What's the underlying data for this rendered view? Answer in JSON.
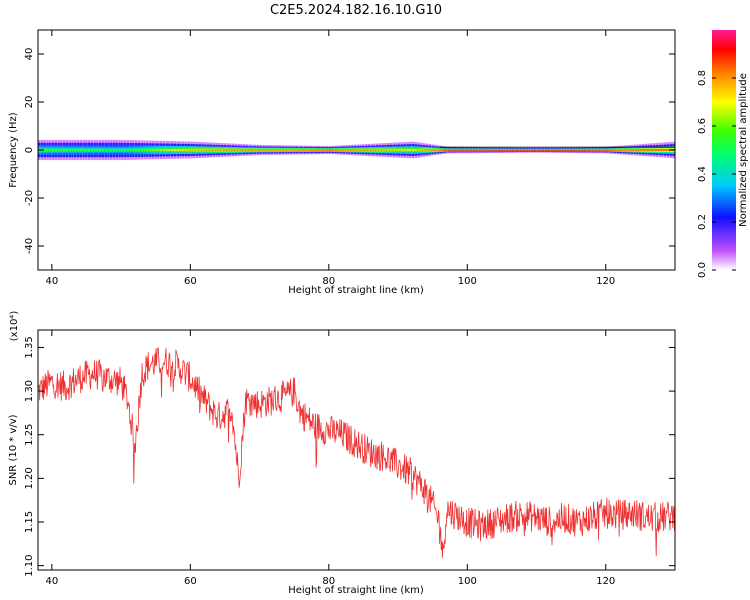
{
  "title": "C2E5.2024.182.16.10.G10",
  "colors": {
    "snr_line": "#ee3030",
    "axis": "#000000"
  },
  "chart_data": [
    {
      "type": "heatmap",
      "xlabel": "Height of straight line (km)",
      "ylabel": "Frequency (Hz)",
      "xlim": [
        38,
        130
      ],
      "ylim": [
        -50,
        50
      ],
      "xticks": [
        40,
        60,
        80,
        100,
        120
      ],
      "yticks": [
        -40,
        -20,
        0,
        20,
        40
      ],
      "xtick_labels": [
        "40",
        "60",
        "80",
        "100",
        "120"
      ],
      "ytick_labels": [
        "-40",
        "-20",
        "0",
        "20",
        "40"
      ],
      "description": "Spectral amplitude concentrated in a narrow band near 0 Hz across all heights; peak (red) near 0 Hz from ~60 to 130 km.",
      "band": [
        {
          "x": 38,
          "half_width": 3,
          "peak": 0.55
        },
        {
          "x": 50,
          "half_width": 3,
          "peak": 0.5
        },
        {
          "x": 60,
          "half_width": 2.5,
          "peak": 0.75
        },
        {
          "x": 70,
          "half_width": 1.5,
          "peak": 0.85
        },
        {
          "x": 80,
          "half_width": 1.2,
          "peak": 0.9
        },
        {
          "x": 92,
          "half_width": 2.5,
          "peak": 0.7
        },
        {
          "x": 97,
          "half_width": 1,
          "peak": 0.95
        },
        {
          "x": 110,
          "half_width": 0.8,
          "peak": 0.95
        },
        {
          "x": 120,
          "half_width": 1,
          "peak": 0.9
        },
        {
          "x": 130,
          "half_width": 2.5,
          "peak": 0.85
        }
      ]
    },
    {
      "type": "line",
      "xlabel": "Height of straight line (km)",
      "ylabel": "SNR (10 * v/v)",
      "y_multiplier_label": "(x10⁴)",
      "xlim": [
        38,
        130
      ],
      "ylim": [
        1.095,
        1.37
      ],
      "xticks": [
        40,
        60,
        80,
        100,
        120
      ],
      "yticks": [
        1.1,
        1.15,
        1.2,
        1.25,
        1.3,
        1.35
      ],
      "xtick_labels": [
        "40",
        "60",
        "80",
        "100",
        "120"
      ],
      "ytick_labels": [
        "1.10",
        "1.15",
        "1.20",
        "1.25",
        "1.30",
        "1.35"
      ],
      "series": [
        {
          "x": [
            38,
            40,
            42,
            44,
            46,
            48,
            50,
            51,
            52,
            53,
            54,
            56,
            58,
            60,
            62,
            64,
            66,
            67,
            68,
            70,
            72,
            74,
            75,
            76,
            78,
            80,
            82,
            84,
            86,
            88,
            90,
            92,
            94,
            95,
            96,
            96.5,
            97,
            98,
            100,
            102,
            104,
            106,
            108,
            110,
            112,
            114,
            116,
            118,
            120,
            122,
            124,
            126,
            128,
            130
          ],
          "y": [
            1.3,
            1.31,
            1.305,
            1.315,
            1.32,
            1.315,
            1.31,
            1.29,
            1.235,
            1.32,
            1.33,
            1.335,
            1.33,
            1.315,
            1.29,
            1.27,
            1.28,
            1.2,
            1.29,
            1.285,
            1.29,
            1.295,
            1.3,
            1.275,
            1.26,
            1.255,
            1.25,
            1.24,
            1.23,
            1.225,
            1.215,
            1.205,
            1.185,
            1.17,
            1.15,
            1.11,
            1.165,
            1.16,
            1.15,
            1.145,
            1.15,
            1.155,
            1.158,
            1.155,
            1.15,
            1.155,
            1.15,
            1.155,
            1.16,
            1.158,
            1.16,
            1.155,
            1.155,
            1.158
          ],
          "noise_amplitude": 0.018
        }
      ]
    }
  ],
  "colorbar": {
    "label": "Normalized spectral amplitude",
    "ticks": [
      0.0,
      0.2,
      0.4,
      0.6,
      0.8
    ],
    "tick_labels": [
      "0.0",
      "0.2",
      "0.4",
      "0.6",
      "0.8"
    ],
    "range": [
      0,
      1
    ]
  }
}
